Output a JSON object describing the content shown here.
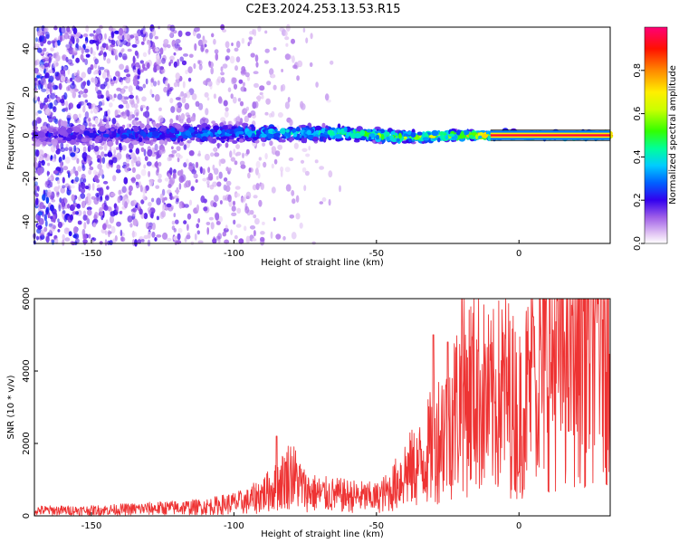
{
  "title": "C2E3.2024.253.13.53.R15",
  "chart_data": [
    {
      "type": "heatmap",
      "xlabel": "Height of straight line (km)",
      "ylabel": "Frequency (Hz)",
      "xlim": [
        -170,
        32
      ],
      "ylim": [
        -50,
        50
      ],
      "xticks": [
        -150,
        -100,
        -50,
        0
      ],
      "yticks": [
        -40,
        -20,
        0,
        20,
        40
      ],
      "grid": false,
      "band": {
        "center_hz": [
          {
            "x": -170,
            "y": 0
          },
          {
            "x": -100,
            "y": 1
          },
          {
            "x": -60,
            "y": 1
          },
          {
            "x": -40,
            "y": -1
          },
          {
            "x": -20,
            "y": 0
          },
          {
            "x": 32,
            "y": 0
          }
        ],
        "halfwidth_hz": [
          {
            "x": -170,
            "y": 4
          },
          {
            "x": -100,
            "y": 3.5
          },
          {
            "x": -50,
            "y": 2.5
          },
          {
            "x": -10,
            "y": 1.5
          },
          {
            "x": 32,
            "y": 1.5
          }
        ],
        "peak_amplitude": [
          {
            "x": -170,
            "y": 0.2
          },
          {
            "x": -110,
            "y": 0.35
          },
          {
            "x": -60,
            "y": 0.5
          },
          {
            "x": -20,
            "y": 0.7
          },
          {
            "x": 0,
            "y": 0.9
          },
          {
            "x": 32,
            "y": 0.95
          }
        ]
      },
      "colorbar": {
        "label": "Normalized spectral amplitude",
        "range": [
          0,
          1
        ],
        "ticks": [
          "0.0",
          "0.2",
          "0.4",
          "0.6",
          "0.8"
        ]
      }
    },
    {
      "type": "line",
      "xlabel": "Height of straight line (km)",
      "ylabel": "SNR (10 * v/v)",
      "xlim": [
        -170,
        32
      ],
      "ylim": [
        0,
        6000
      ],
      "xticks": [
        -150,
        -100,
        -50,
        0
      ],
      "yticks": [
        0,
        2000,
        4000,
        6000
      ],
      "grid": false,
      "color": "#ee3333",
      "series": [
        {
          "envelope": [
            {
              "x": -170,
              "y": 150
            },
            {
              "x": -150,
              "y": 150
            },
            {
              "x": -130,
              "y": 200
            },
            {
              "x": -110,
              "y": 250
            },
            {
              "x": -95,
              "y": 400
            },
            {
              "x": -85,
              "y": 800
            },
            {
              "x": -80,
              "y": 1200
            },
            {
              "x": -75,
              "y": 700
            },
            {
              "x": -70,
              "y": 600
            },
            {
              "x": -60,
              "y": 550
            },
            {
              "x": -50,
              "y": 500
            },
            {
              "x": -45,
              "y": 700
            },
            {
              "x": -40,
              "y": 1200
            },
            {
              "x": -35,
              "y": 1400
            },
            {
              "x": -30,
              "y": 2000
            },
            {
              "x": -25,
              "y": 2600
            },
            {
              "x": -20,
              "y": 3200
            },
            {
              "x": -15,
              "y": 3600
            },
            {
              "x": -10,
              "y": 3000
            },
            {
              "x": -5,
              "y": 3500
            },
            {
              "x": 0,
              "y": 2800
            },
            {
              "x": 5,
              "y": 3800
            },
            {
              "x": 10,
              "y": 4300
            },
            {
              "x": 20,
              "y": 5000
            },
            {
              "x": 32,
              "y": 5600
            }
          ],
          "peaks": [
            {
              "x": -85,
              "y": 2200
            },
            {
              "x": -20,
              "y": 6000
            },
            {
              "x": -30,
              "y": 5000
            },
            {
              "x": -25,
              "y": 4800
            },
            {
              "x": 0,
              "y": 1200
            },
            {
              "x": 5,
              "y": 5500
            }
          ]
        }
      ]
    }
  ]
}
